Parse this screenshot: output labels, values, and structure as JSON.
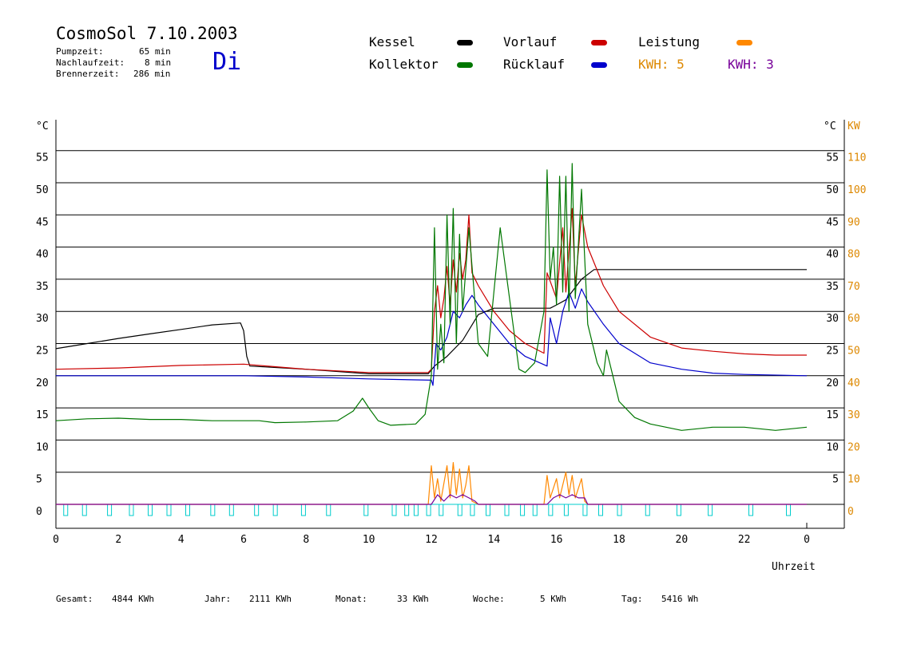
{
  "header": {
    "title": "CosmoSol 7.10.2003",
    "day": "Di",
    "stats": [
      {
        "label": "Pumpzeit:",
        "value": "65 min"
      },
      {
        "label": "Nachlaufzeit:",
        "value": "8 min"
      },
      {
        "label": "Brennerzeit:",
        "value": "286 min"
      }
    ]
  },
  "legend": {
    "kessel": {
      "label": "Kessel",
      "color": "#000000"
    },
    "vorlauf": {
      "label": "Vorlauf",
      "color": "#cc0000"
    },
    "leistung": {
      "label": "Leistung",
      "color": "#ff8800"
    },
    "kollektor": {
      "label": "Kollektor",
      "color": "#007700"
    },
    "ruecklauf": {
      "label": "Rücklauf",
      "color": "#0000cc"
    },
    "kwh1": {
      "label": "KWH: 5",
      "color": "#dd8800"
    },
    "kwh2": {
      "label": "KWH: 3",
      "color": "#770099"
    }
  },
  "footer": [
    {
      "label": "Gesamt:",
      "value": "4844 KWh"
    },
    {
      "label": "Jahr:",
      "value": "2111 KWh"
    },
    {
      "label": "Monat:",
      "value": "33 KWh"
    },
    {
      "label": "Woche:",
      "value": "5 KWh"
    },
    {
      "label": "Tag:",
      "value": "5416 Wh"
    }
  ],
  "chart_data": {
    "type": "line",
    "xlabel": "Uhrzeit",
    "ylabel_left": "°C",
    "ylabel_right_1": "°C",
    "ylabel_right_2": "KW",
    "x_ticks": [
      "0",
      "2",
      "4",
      "6",
      "8",
      "10",
      "12",
      "14",
      "16",
      "18",
      "20",
      "22",
      "0"
    ],
    "xlim": [
      0,
      24
    ],
    "ylim": [
      0,
      55
    ],
    "y_left_ticks": [
      0,
      5,
      10,
      15,
      20,
      25,
      30,
      35,
      40,
      45,
      50,
      55
    ],
    "y_right_ticks": [
      5,
      10,
      15,
      20,
      25,
      30,
      35,
      40,
      45,
      50,
      55
    ],
    "kw_ticks": [
      0,
      10,
      20,
      30,
      40,
      50,
      60,
      70,
      80,
      90,
      100,
      110
    ],
    "grid": true,
    "series": [
      {
        "name": "Kessel",
        "color": "#000000",
        "points": [
          [
            0,
            24.2
          ],
          [
            1,
            25
          ],
          [
            2,
            25.8
          ],
          [
            3,
            26.5
          ],
          [
            4,
            27.2
          ],
          [
            5,
            27.9
          ],
          [
            5.9,
            28.2
          ],
          [
            6,
            27
          ],
          [
            6.1,
            23
          ],
          [
            6.2,
            21.5
          ],
          [
            8,
            21
          ],
          [
            10,
            20.3
          ],
          [
            11.9,
            20.3
          ],
          [
            12.1,
            21.5
          ],
          [
            12.5,
            23
          ],
          [
            13,
            25.5
          ],
          [
            13.5,
            29.5
          ],
          [
            14,
            30.5
          ],
          [
            15,
            30.5
          ],
          [
            15.8,
            30.5
          ],
          [
            16,
            31
          ],
          [
            16.3,
            31.8
          ],
          [
            16.8,
            35
          ],
          [
            17.2,
            36.5
          ],
          [
            18,
            36.5
          ],
          [
            20,
            36.5
          ],
          [
            22,
            36.5
          ],
          [
            24,
            36.5
          ]
        ]
      },
      {
        "name": "Vorlauf",
        "color": "#cc0000",
        "points": [
          [
            0,
            21
          ],
          [
            2,
            21.2
          ],
          [
            4,
            21.6
          ],
          [
            6,
            21.8
          ],
          [
            7,
            21.4
          ],
          [
            8,
            21
          ],
          [
            10,
            20.5
          ],
          [
            11.9,
            20.5
          ],
          [
            12,
            21
          ],
          [
            12.1,
            30
          ],
          [
            12.2,
            34
          ],
          [
            12.3,
            29
          ],
          [
            12.4,
            32
          ],
          [
            12.5,
            37
          ],
          [
            12.6,
            31
          ],
          [
            12.7,
            38
          ],
          [
            12.8,
            33
          ],
          [
            12.9,
            39
          ],
          [
            13.0,
            35
          ],
          [
            13.1,
            38
          ],
          [
            13.2,
            45
          ],
          [
            13.3,
            36
          ],
          [
            13.5,
            34
          ],
          [
            14,
            30
          ],
          [
            14.5,
            27
          ],
          [
            15,
            25
          ],
          [
            15.6,
            23.5
          ],
          [
            15.7,
            36
          ],
          [
            16,
            32
          ],
          [
            16.2,
            43
          ],
          [
            16.3,
            33
          ],
          [
            16.5,
            46
          ],
          [
            16.6,
            34
          ],
          [
            16.8,
            45
          ],
          [
            17,
            40
          ],
          [
            17.5,
            34
          ],
          [
            18,
            30
          ],
          [
            19,
            26
          ],
          [
            20,
            24.3
          ],
          [
            21,
            23.8
          ],
          [
            22,
            23.4
          ],
          [
            23,
            23.2
          ],
          [
            24,
            23.2
          ]
        ]
      },
      {
        "name": "Rücklauf",
        "color": "#0000cc",
        "points": [
          [
            0,
            20
          ],
          [
            2,
            20
          ],
          [
            4,
            20
          ],
          [
            6,
            20
          ],
          [
            8,
            19.8
          ],
          [
            10,
            19.5
          ],
          [
            12,
            19.3
          ],
          [
            12.05,
            18.5
          ],
          [
            12.15,
            25
          ],
          [
            12.3,
            24
          ],
          [
            12.5,
            26
          ],
          [
            12.7,
            30
          ],
          [
            12.9,
            29
          ],
          [
            13.1,
            31
          ],
          [
            13.3,
            32.5
          ],
          [
            13.5,
            31
          ],
          [
            14,
            28
          ],
          [
            14.5,
            25
          ],
          [
            15,
            23
          ],
          [
            15.7,
            21.5
          ],
          [
            15.8,
            29
          ],
          [
            16,
            25
          ],
          [
            16.2,
            30
          ],
          [
            16.4,
            33
          ],
          [
            16.6,
            30.5
          ],
          [
            16.8,
            33.5
          ],
          [
            17,
            31.5
          ],
          [
            17.5,
            28
          ],
          [
            18,
            25
          ],
          [
            19,
            22
          ],
          [
            20,
            21
          ],
          [
            21,
            20.4
          ],
          [
            22,
            20.2
          ],
          [
            24,
            20
          ]
        ]
      },
      {
        "name": "Kollektor",
        "color": "#007700",
        "points": [
          [
            0,
            13
          ],
          [
            1,
            13.3
          ],
          [
            2,
            13.4
          ],
          [
            3,
            13.2
          ],
          [
            4,
            13.2
          ],
          [
            5,
            13
          ],
          [
            6,
            13
          ],
          [
            6.5,
            13
          ],
          [
            7,
            12.7
          ],
          [
            8,
            12.8
          ],
          [
            9,
            13
          ],
          [
            9.5,
            14.5
          ],
          [
            9.8,
            16.5
          ],
          [
            10,
            15
          ],
          [
            10.3,
            13
          ],
          [
            10.7,
            12.3
          ],
          [
            11.5,
            12.5
          ],
          [
            11.8,
            14
          ],
          [
            12,
            20
          ],
          [
            12.1,
            43
          ],
          [
            12.2,
            21
          ],
          [
            12.3,
            28
          ],
          [
            12.4,
            22
          ],
          [
            12.5,
            45
          ],
          [
            12.6,
            28
          ],
          [
            12.7,
            46
          ],
          [
            12.8,
            25
          ],
          [
            12.9,
            42
          ],
          [
            13.0,
            30
          ],
          [
            13.2,
            43
          ],
          [
            13.5,
            25
          ],
          [
            13.8,
            23
          ],
          [
            14,
            33
          ],
          [
            14.2,
            43
          ],
          [
            14.5,
            32
          ],
          [
            14.8,
            21
          ],
          [
            15,
            20.5
          ],
          [
            15.3,
            22
          ],
          [
            15.6,
            30
          ],
          [
            15.7,
            52
          ],
          [
            15.8,
            35
          ],
          [
            15.9,
            40
          ],
          [
            16.0,
            31
          ],
          [
            16.1,
            51
          ],
          [
            16.2,
            33
          ],
          [
            16.3,
            51
          ],
          [
            16.4,
            30
          ],
          [
            16.5,
            53
          ],
          [
            16.6,
            32
          ],
          [
            16.8,
            49
          ],
          [
            17.0,
            28
          ],
          [
            17.3,
            22
          ],
          [
            17.5,
            20
          ],
          [
            17.6,
            24
          ],
          [
            17.8,
            20
          ],
          [
            18,
            16
          ],
          [
            18.5,
            13.5
          ],
          [
            19,
            12.5
          ],
          [
            20,
            11.5
          ],
          [
            21,
            12
          ],
          [
            22,
            12
          ],
          [
            23,
            11.5
          ],
          [
            24,
            12
          ]
        ]
      },
      {
        "name": "Leistung",
        "color": "#ff8800",
        "axis": "kw",
        "points": [
          [
            0,
            0
          ],
          [
            11.9,
            0
          ],
          [
            12,
            12
          ],
          [
            12.1,
            2
          ],
          [
            12.2,
            8
          ],
          [
            12.3,
            1
          ],
          [
            12.5,
            12
          ],
          [
            12.6,
            2
          ],
          [
            12.7,
            13
          ],
          [
            12.8,
            3
          ],
          [
            12.9,
            11
          ],
          [
            13.0,
            2
          ],
          [
            13.1,
            6
          ],
          [
            13.2,
            12
          ],
          [
            13.3,
            1
          ],
          [
            13.5,
            0
          ],
          [
            15.6,
            0
          ],
          [
            15.7,
            9
          ],
          [
            15.8,
            2
          ],
          [
            16,
            8
          ],
          [
            16.1,
            2
          ],
          [
            16.3,
            10
          ],
          [
            16.4,
            3
          ],
          [
            16.5,
            9
          ],
          [
            16.6,
            2
          ],
          [
            16.8,
            8
          ],
          [
            16.9,
            1
          ],
          [
            17,
            0
          ],
          [
            24,
            0
          ]
        ]
      },
      {
        "name": "KWH",
        "color": "#770099",
        "axis": "kw",
        "points": [
          [
            0,
            0
          ],
          [
            12,
            0
          ],
          [
            12.2,
            3
          ],
          [
            12.4,
            1
          ],
          [
            12.6,
            3
          ],
          [
            12.8,
            2
          ],
          [
            13,
            3
          ],
          [
            13.2,
            2
          ],
          [
            13.4,
            1
          ],
          [
            13.5,
            0
          ],
          [
            15.7,
            0
          ],
          [
            15.9,
            2
          ],
          [
            16.1,
            3
          ],
          [
            16.3,
            2
          ],
          [
            16.5,
            3
          ],
          [
            16.7,
            2
          ],
          [
            16.9,
            2
          ],
          [
            17,
            0
          ],
          [
            24,
            0
          ]
        ]
      }
    ],
    "pump_pulses_hours": [
      0.3,
      0.9,
      1.7,
      2.4,
      3.0,
      3.6,
      4.2,
      5.0,
      5.6,
      6.4,
      7.0,
      7.9,
      8.7,
      9.9,
      10.8,
      11.2,
      11.5,
      11.9,
      12.3,
      12.9,
      13.3,
      13.8,
      14.4,
      14.9,
      15.3,
      15.8,
      16.3,
      16.9,
      17.4,
      18.0,
      18.9,
      19.9,
      20.9,
      22.2,
      23.4
    ]
  }
}
